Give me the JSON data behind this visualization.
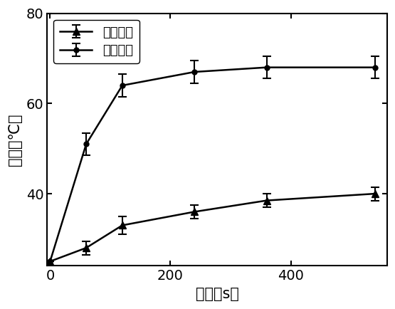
{
  "x": [
    0,
    60,
    120,
    240,
    360,
    540
  ],
  "micro_temp": [
    25,
    51,
    64,
    67,
    68,
    68
  ],
  "micro_temp_err": [
    0,
    2.5,
    2.5,
    2.5,
    2.5,
    2.5
  ],
  "solution_temp": [
    25,
    28,
    33,
    36,
    38.5,
    40
  ],
  "solution_temp_err": [
    0,
    1.5,
    2.0,
    1.5,
    1.5,
    1.5
  ],
  "xlabel": "时间（s）",
  "ylabel": "温度（℃）",
  "xlim": [
    -5,
    560
  ],
  "ylim": [
    24,
    80
  ],
  "xticks": [
    0,
    200,
    400
  ],
  "yticks": [
    40,
    60,
    80
  ],
  "legend_solution": "溶液温度",
  "legend_micro": "微观温度",
  "line_color": "#000000",
  "bg_color": "#ffffff",
  "label_fontsize": 15,
  "tick_fontsize": 14,
  "legend_fontsize": 13
}
